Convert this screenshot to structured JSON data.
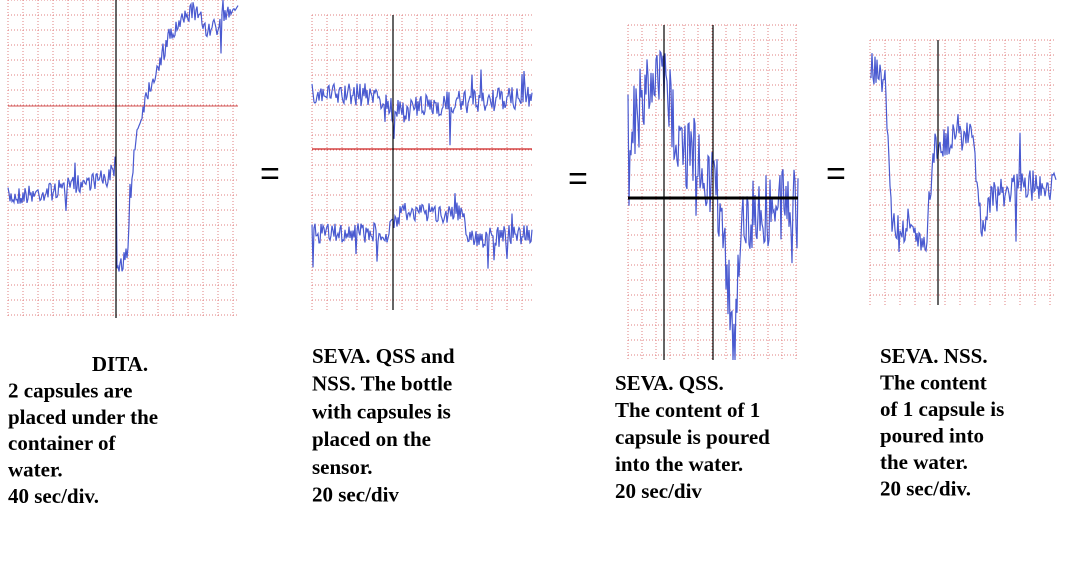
{
  "panels": [
    {
      "caption": [
        "DITA.",
        "2 capsules are",
        "placed under the",
        "container of",
        "water.",
        "40 sec/div."
      ]
    },
    {
      "caption": [
        "SEVA. QSS and",
        "NSS. The bottle",
        "with capsules is",
        "placed on the",
        "sensor.",
        "20 sec/div"
      ]
    },
    {
      "caption": [
        "SEVA. QSS.",
        "The content of 1",
        "capsule is poured",
        "into the water.",
        "20 sec/div"
      ]
    },
    {
      "caption": [
        "SEVA. NSS.",
        "The content",
        "of 1 capsule is",
        "poured into",
        "the water.",
        "20 sec/div."
      ]
    }
  ],
  "equals": [
    "=",
    "=",
    "="
  ]
}
